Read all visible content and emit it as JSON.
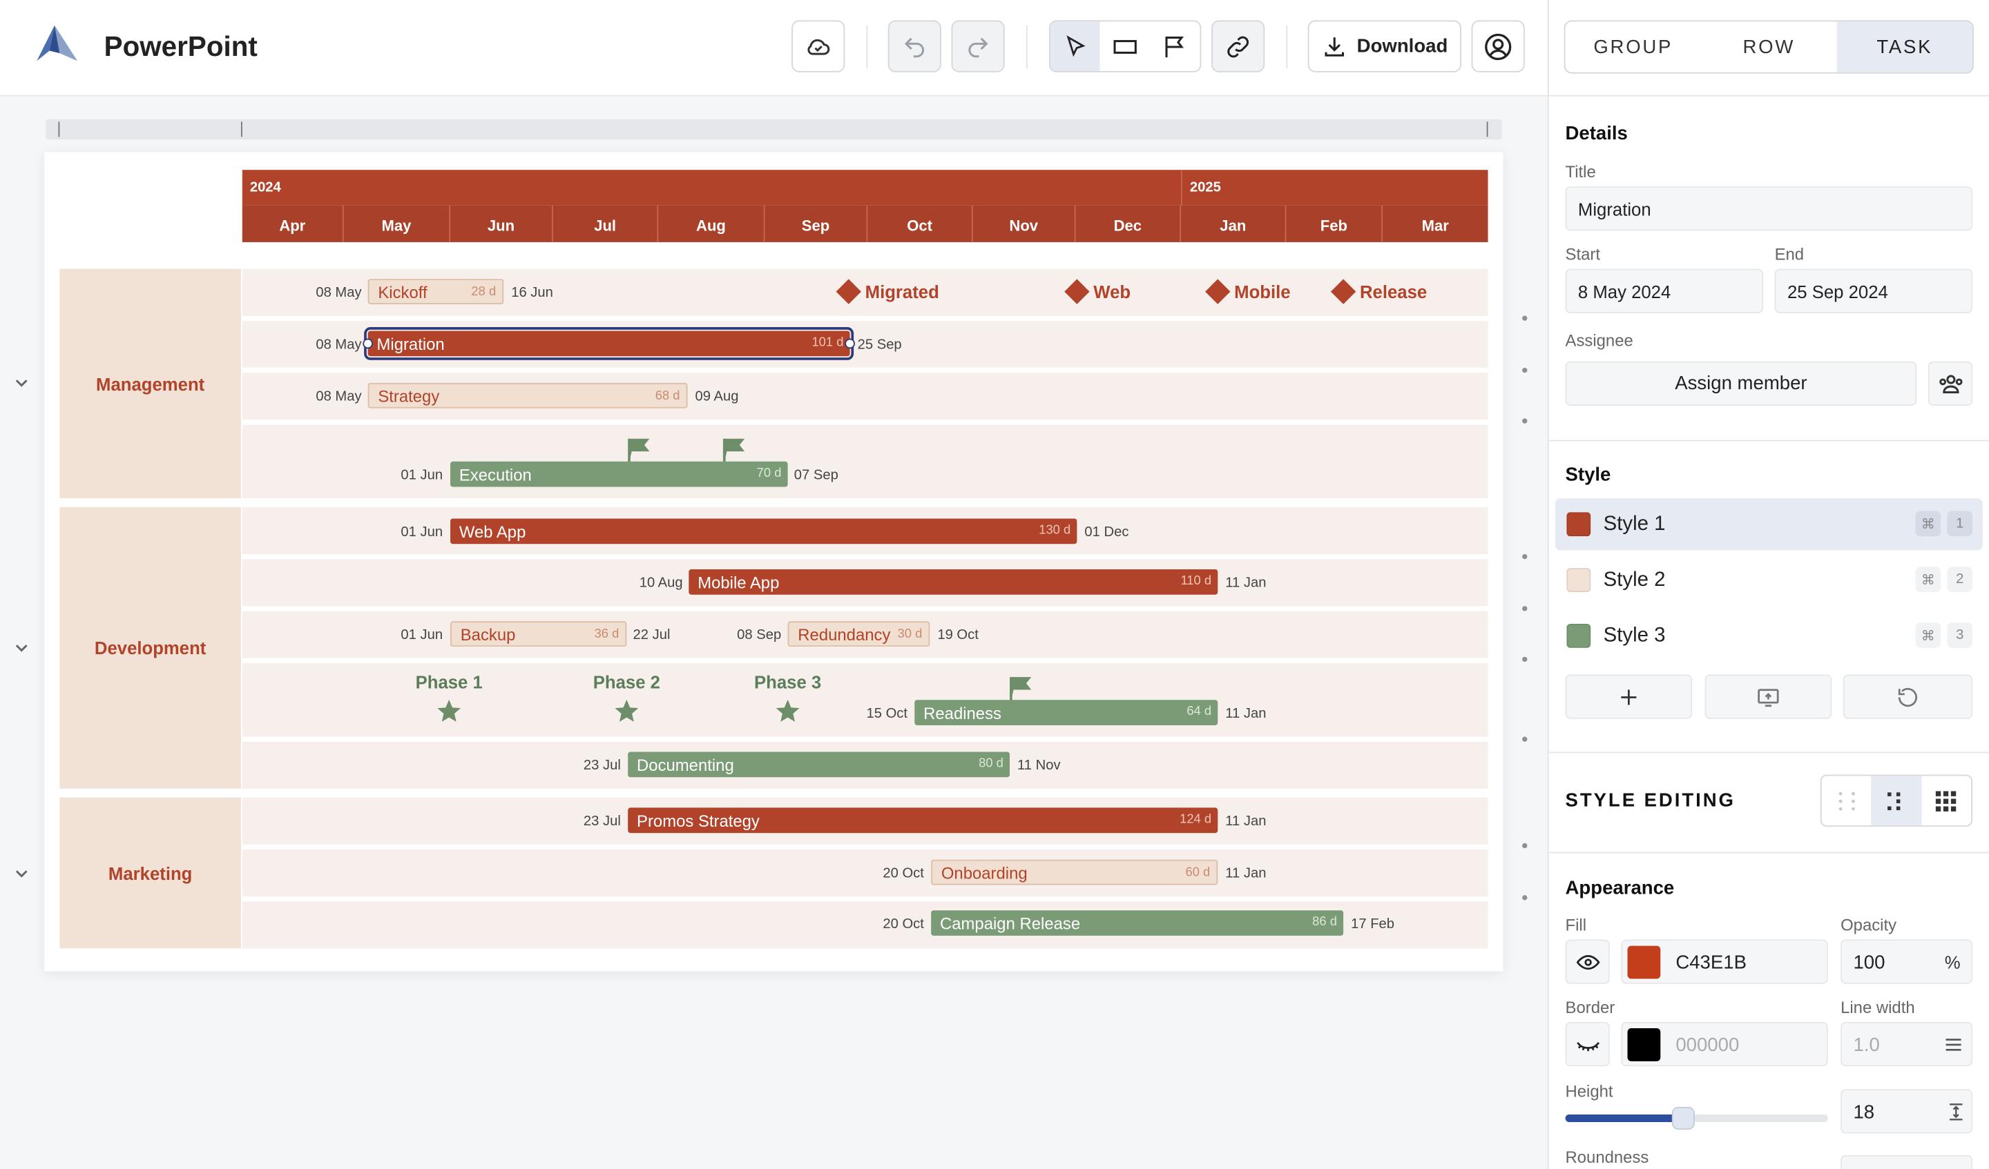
{
  "app": {
    "title": "PowerPoint"
  },
  "toolbar": {
    "download_label": "Download"
  },
  "timeline": {
    "years": [
      "2024",
      "2025"
    ],
    "months": [
      "Apr",
      "May",
      "Jun",
      "Jul",
      "Aug",
      "Sep",
      "Oct",
      "Nov",
      "Dec",
      "Jan",
      "Feb",
      "Mar"
    ]
  },
  "groups": {
    "management": "Management",
    "development": "Development",
    "marketing": "Marketing"
  },
  "milestones": {
    "migrated": "Migrated",
    "web": "Web",
    "mobile": "Mobile",
    "release": "Release"
  },
  "phases": {
    "p1": "Phase 1",
    "p2": "Phase 2",
    "p3": "Phase 3"
  },
  "tasks": {
    "kickoff": {
      "name": "Kickoff",
      "start": "08 May",
      "end": "16 Jun",
      "duration": "28 d"
    },
    "migration": {
      "name": "Migration",
      "start": "08 May",
      "end": "25 Sep",
      "duration": "101 d"
    },
    "strategy": {
      "name": "Strategy",
      "start": "08 May",
      "end": "09 Aug",
      "duration": "68 d"
    },
    "execution": {
      "name": "Execution",
      "start": "01 Jun",
      "end": "07 Sep",
      "duration": "70 d"
    },
    "webapp": {
      "name": "Web App",
      "start": "01 Jun",
      "end": "01 Dec",
      "duration": "130 d"
    },
    "mobileapp": {
      "name": "Mobile App",
      "start": "10 Aug",
      "end": "11 Jan",
      "duration": "110 d"
    },
    "backup": {
      "name": "Backup",
      "start": "01 Jun",
      "end": "22 Jul",
      "duration": "36 d"
    },
    "redundancy": {
      "name": "Redundancy",
      "start": "08 Sep",
      "end": "19 Oct",
      "duration": "30 d"
    },
    "readiness": {
      "name": "Readiness",
      "start": "15 Oct",
      "end": "11 Jan",
      "duration": "64 d"
    },
    "documenting": {
      "name": "Documenting",
      "start": "23 Jul",
      "end": "11 Nov",
      "duration": "80 d"
    },
    "promos": {
      "name": "Promos Strategy",
      "start": "23 Jul",
      "end": "11 Jan",
      "duration": "124 d"
    },
    "onboarding": {
      "name": "Onboarding",
      "start": "20 Oct",
      "end": "11 Jan",
      "duration": "60 d"
    },
    "campaign": {
      "name": "Campaign Release",
      "start": "20 Oct",
      "end": "17 Feb",
      "duration": "86 d"
    }
  },
  "panel": {
    "tabs": [
      "GROUP",
      "ROW",
      "TASK"
    ],
    "details": {
      "heading": "Details",
      "title_label": "Title",
      "title_value": "Migration",
      "start_label": "Start",
      "start_value": "8 May 2024",
      "end_label": "End",
      "end_value": "25 Sep 2024",
      "assignee_label": "Assignee",
      "assign_button": "Assign member"
    },
    "style": {
      "heading": "Style",
      "items": [
        {
          "name": "Style 1",
          "color": "#b1432a",
          "key": "1"
        },
        {
          "name": "Style 2",
          "color": "#f1e2d5",
          "key": "2"
        },
        {
          "name": "Style 3",
          "color": "#7a9b76",
          "key": "3"
        }
      ],
      "cmd_symbol": "⌘"
    },
    "style_editing": {
      "heading": "STYLE EDITING"
    },
    "appearance": {
      "heading": "Appearance",
      "fill_label": "Fill",
      "fill_value": "C43E1B",
      "fill_color": "#c43e1b",
      "opacity_label": "Opacity",
      "opacity_value": "100",
      "opacity_unit": "%",
      "border_label": "Border",
      "border_value": "000000",
      "border_color": "#000000",
      "line_width_label": "Line width",
      "line_width_value": "1.0",
      "height_label": "Height",
      "height_value": "18",
      "height_level": 0.45,
      "roundness_label": "Roundness"
    }
  }
}
